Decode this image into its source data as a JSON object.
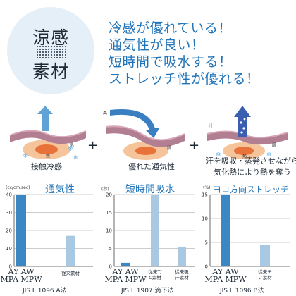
{
  "badge": {
    "top": "涼感",
    "bottom": "素材"
  },
  "claims": [
    "冷感が優れている！",
    "通気性が良い！",
    "短時間で吸水する！",
    "ストレッチ性が優れる！"
  ],
  "illustrations": [
    {
      "caption": "接触冷感",
      "labels": {
        "heat": "熱",
        "skin": "肌"
      }
    },
    {
      "caption": "優れた通気性",
      "labels": {
        "wind": "風",
        "skin": "肌"
      }
    },
    {
      "caption_lines": [
        "汗を吸収・蒸発させながら",
        "気化熱により熱を奪う"
      ],
      "labels": {
        "sweat": "汗",
        "heat": "熱",
        "skin": "肌"
      }
    }
  ],
  "plus_sign": "+",
  "colors": {
    "accent": "#2174b8",
    "bar_main": "#3a87c4",
    "bar_compare": "#a9c8e2"
  },
  "chart_data": [
    {
      "type": "bar",
      "title": "通気性",
      "unit": "(cc/cm.sec)",
      "ylim": [
        0,
        40
      ],
      "yticks": [
        "0",
        "10",
        "20",
        "30",
        "40"
      ],
      "categories": [
        "AY AW MPA MPW",
        "従来素材"
      ],
      "values": [
        40,
        17
      ],
      "standard": "JIS L 1096 A法"
    },
    {
      "type": "bar",
      "title": "短時間吸水",
      "unit": "(秒)",
      "ylim": [
        0,
        20
      ],
      "yticks": [
        "0",
        "5",
        "10",
        "15",
        "20"
      ],
      "categories": [
        "AY AW MPA MPW",
        "従来T/C素材",
        "従来吸汗素材"
      ],
      "values": [
        1,
        20,
        5.5
      ],
      "standard": "JIS L 1907 滴下法"
    },
    {
      "type": "bar",
      "title": "ヨコ方向ストレッチ",
      "unit": "(%)",
      "ylim": [
        0,
        15
      ],
      "yticks": [
        "0",
        "5",
        "10",
        "15"
      ],
      "categories": [
        "AY AW MPA MPW",
        "従来チノ素材"
      ],
      "values": [
        15,
        4.5
      ],
      "standard": "JIS L 1096 B法"
    }
  ]
}
